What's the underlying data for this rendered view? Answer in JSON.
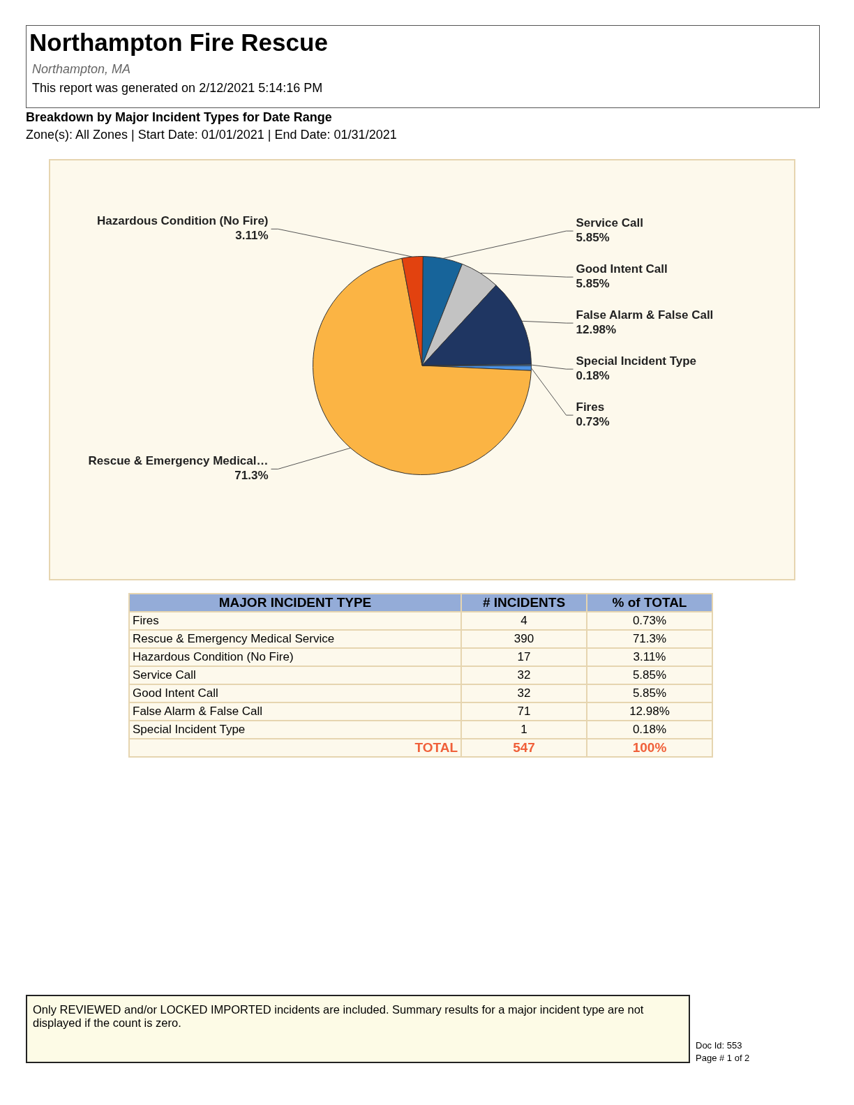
{
  "chart_data": {
    "type": "pie",
    "title": "Northampton Fire Rescue",
    "subtitle": "Breakdown by Major Incident Types for Date Range",
    "annotations": [
      "Northampton, MA",
      "This report was generated on 2/12/2021 5:14:16 PM",
      "Zone(s): All Zones | Start Date: 01/01/2021 | End Date: 01/31/2021",
      "MAJOR INCIDENT TYPE",
      "# INCIDENTS",
      "% of TOTAL",
      "TOTAL",
      "Only REVIEWED and/or LOCKED IMPORTED incidents are included.  Summary results for a major incident type are not displayed if the count is zero.",
      "Doc Id: 553",
      "Page # 1 of 2",
      "Fires",
      "Rescue & Emergency Medical Service",
      "Hazardous Condition (No Fire)",
      "Service Call",
      "Good Intent Call",
      "False Alarm & False Call",
      "Special Incident Type",
      "4",
      "390",
      "17",
      "32",
      "32",
      "71",
      "1"
    ],
    "categories": [
      "Fires",
      "Rescue & Emergency Medical…",
      "Hazardous Condition (No Fire)",
      "Service Call",
      "Good Intent Call",
      "False Alarm & False Call",
      "Special Incident Type"
    ],
    "values": [
      0.73,
      71.3,
      3.11,
      5.85,
      5.85,
      12.98,
      0.18
    ],
    "value_labels": [
      "0.73%",
      "71.3%",
      "3.11%",
      "5.85%",
      "5.85%",
      "12.98%",
      "0.18%"
    ],
    "colors": [
      "#4a90e2",
      "#fbb444",
      "#e2420f",
      "#17649a",
      "#c3c3c3",
      "#1f3662",
      "#5aa0e6"
    ],
    "totals": [
      "547",
      "100%"
    ],
    "legend": false
  }
}
